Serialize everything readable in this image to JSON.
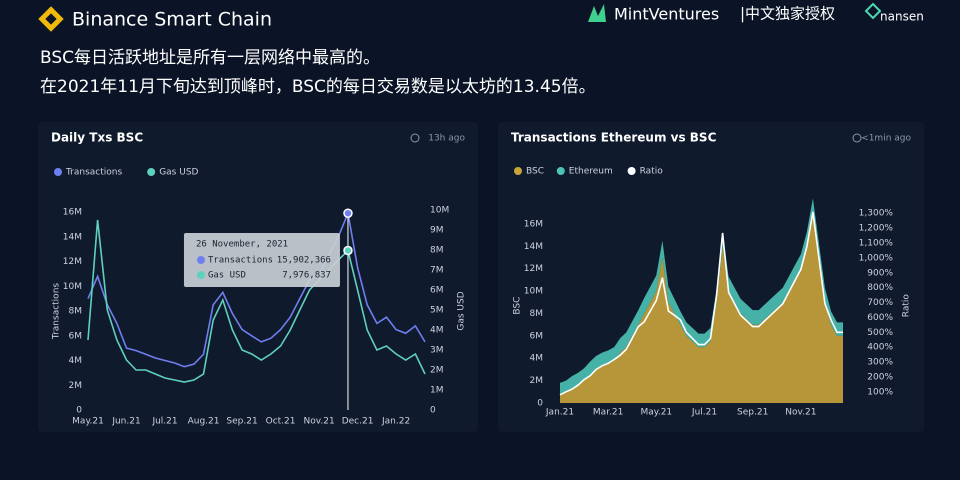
{
  "header": {
    "brand": "Binance Smart Chain",
    "partner": "MintVentures",
    "license": "|中文独家授权",
    "partner2": "nansen",
    "lines": [
      "BSC每日活跃地址是所有一层网络中最高的。",
      "在2021年11月下旬达到顶峰时，BSC的每日交易数是以太坊的13.45倍。"
    ]
  },
  "chart_data": [
    {
      "type": "line",
      "title": "Daily Txs BSC",
      "updated": "13h ago",
      "y_label": "Transactions",
      "y2_label": "Gas USD",
      "categories": [
        "May.21",
        null,
        null,
        null,
        "Jun.21",
        null,
        null,
        null,
        "Jul.21",
        null,
        null,
        null,
        "Aug.21",
        null,
        null,
        null,
        "Sep.21",
        null,
        null,
        null,
        "Oct.21",
        null,
        null,
        null,
        "Nov.21",
        null,
        null,
        null,
        "Dec.21",
        null,
        null,
        null,
        "Jan.22",
        null,
        null,
        null
      ],
      "series": [
        {
          "name": "Transactions",
          "color": "#6f7ff0",
          "values": [
            9000000,
            10800000,
            8500000,
            7000000,
            5000000,
            4800000,
            4500000,
            4200000,
            4000000,
            3800000,
            3500000,
            3700000,
            4500000,
            8500000,
            9500000,
            7800000,
            6500000,
            6000000,
            5500000,
            5800000,
            6500000,
            7500000,
            9000000,
            10500000,
            11000000,
            12500000,
            14000000,
            15902366,
            11500000,
            8500000,
            7000000,
            7500000,
            6500000,
            6200000,
            6800000,
            5500000
          ]
        },
        {
          "name": "Gas USD",
          "color": "#5fd0bd",
          "axis": "y2",
          "values": [
            3500000,
            9500000,
            5000000,
            3500000,
            2500000,
            2000000,
            2000000,
            1800000,
            1600000,
            1500000,
            1400000,
            1500000,
            1800000,
            4500000,
            5500000,
            4000000,
            3000000,
            2800000,
            2500000,
            2800000,
            3200000,
            4000000,
            5000000,
            6000000,
            6500000,
            7000000,
            7500000,
            7976837,
            6000000,
            4000000,
            3000000,
            3200000,
            2800000,
            2500000,
            2800000,
            1800000
          ]
        }
      ],
      "ylim": [
        0,
        16000000
      ],
      "yticks": [
        0,
        {
          "value": 2000000,
          "label": "2M"
        },
        {
          "value": 4000000,
          "label": "4M"
        },
        {
          "value": 6000000,
          "label": "6M"
        },
        {
          "value": 8000000,
          "label": "8M"
        },
        {
          "value": 10000000,
          "label": "10M"
        },
        {
          "value": 12000000,
          "label": "12M"
        },
        {
          "value": 14000000,
          "label": "14M"
        },
        {
          "value": 16000000,
          "label": "16M"
        }
      ],
      "y2lim": [
        0,
        10000000
      ],
      "y2ticks": [
        0,
        {
          "value": 1000000,
          "label": "1M"
        },
        {
          "value": 2000000,
          "label": "2M"
        },
        {
          "value": 3000000,
          "label": "3M"
        },
        {
          "value": 4000000,
          "label": "4M"
        },
        {
          "value": 5000000,
          "label": "5M"
        },
        {
          "value": 6000000,
          "label": "6M"
        },
        {
          "value": 7000000,
          "label": "7M"
        },
        {
          "value": 8000000,
          "label": "8M"
        },
        {
          "value": 9000000,
          "label": "9M"
        },
        {
          "value": 10000000,
          "label": "10M"
        }
      ],
      "tooltip": {
        "title": "26 November, 2021",
        "values": [
          15902366,
          7976837
        ],
        "value_labels": [
          "15,902,366",
          "7,976,837"
        ]
      }
    },
    {
      "type": "area",
      "stacked": true,
      "title": "Transactions Ethereum vs BSC",
      "updated": "<1min ago",
      "y_label": "BSC",
      "y2_label": "Ratio",
      "categories": [
        "Jan.21",
        null,
        null,
        null,
        null,
        null,
        null,
        null,
        "Mar.21",
        null,
        null,
        null,
        null,
        null,
        null,
        null,
        "May.21",
        null,
        null,
        null,
        null,
        null,
        null,
        null,
        "Jul.21",
        null,
        null,
        null,
        null,
        null,
        null,
        null,
        "Sep.21",
        null,
        null,
        null,
        null,
        null,
        null,
        null,
        "Nov.21",
        null,
        null,
        null,
        null,
        null,
        null,
        null
      ],
      "series": [
        {
          "name": "BSC",
          "color": "#c9a43a",
          "values": [
            800000,
            1000000,
            1300000,
            1600000,
            2000000,
            2500000,
            3000000,
            3300000,
            3500000,
            3800000,
            4500000,
            5000000,
            6000000,
            7000000,
            8000000,
            9000000,
            10000000,
            13000000,
            9000000,
            8000000,
            7000000,
            6000000,
            5500000,
            5000000,
            5000000,
            5500000,
            9000000,
            14000000,
            10000000,
            9000000,
            8000000,
            7500000,
            7000000,
            7000000,
            7500000,
            8000000,
            8500000,
            9000000,
            10000000,
            11000000,
            12000000,
            14000000,
            17000000,
            13000000,
            9000000,
            7000000,
            6000000,
            6000000
          ]
        },
        {
          "name": "Ethereum",
          "color": "#4cc3b5",
          "values": [
            1000000,
            1000000,
            1100000,
            1100000,
            1100000,
            1200000,
            1200000,
            1200000,
            1200000,
            1200000,
            1300000,
            1300000,
            1300000,
            1300000,
            1400000,
            1400000,
            1400000,
            1500000,
            1400000,
            1300000,
            1200000,
            1200000,
            1200000,
            1200000,
            1200000,
            1200000,
            1200000,
            1200000,
            1300000,
            1300000,
            1300000,
            1300000,
            1300000,
            1300000,
            1300000,
            1300000,
            1300000,
            1300000,
            1300000,
            1300000,
            1300000,
            1300000,
            1300000,
            1300000,
            1300000,
            1200000,
            1200000,
            1200000
          ]
        },
        {
          "name": "Ratio",
          "color": "#ffffff",
          "axis": "y2",
          "values": [
            80,
            100,
            118,
            145,
            182,
            208,
            250,
            275,
            292,
            317,
            346,
            385,
            462,
            538,
            571,
            643,
            714,
            867,
            643,
            615,
            583,
            500,
            458,
            417,
            417,
            458,
            750,
            1167,
            769,
            692,
            615,
            577,
            538,
            538,
            577,
            615,
            654,
            692,
            769,
            846,
            923,
            1077,
            1308,
            1000,
            692,
            583,
            500,
            500
          ]
        }
      ],
      "ylim": [
        0,
        17400000
      ],
      "yticks": [
        0,
        {
          "value": 2000000,
          "label": "2M"
        },
        {
          "value": 4000000,
          "label": "4M"
        },
        {
          "value": 6000000,
          "label": "6M"
        },
        {
          "value": 8000000,
          "label": "8M"
        },
        {
          "value": 10000000,
          "label": "10M"
        },
        {
          "value": 12000000,
          "label": "12M"
        },
        {
          "value": 14000000,
          "label": "14M"
        },
        {
          "value": 16000000,
          "label": "16M"
        }
      ],
      "y2lim": [
        25,
        1335
      ],
      "y2ticks": [
        {
          "value": 100,
          "label": "100%"
        },
        {
          "value": 200,
          "label": "200%"
        },
        {
          "value": 300,
          "label": "300%"
        },
        {
          "value": 400,
          "label": "400%"
        },
        {
          "value": 500,
          "label": "500%"
        },
        {
          "value": 600,
          "label": "600%"
        },
        {
          "value": 700,
          "label": "700%"
        },
        {
          "value": 800,
          "label": "800%"
        },
        {
          "value": 900,
          "label": "900%"
        },
        {
          "value": 1000,
          "label": "1,000%"
        },
        {
          "value": 1100,
          "label": "1,100%"
        },
        {
          "value": 1200,
          "label": "1,200%"
        },
        {
          "value": 1300,
          "label": "1,300%"
        }
      ]
    }
  ]
}
